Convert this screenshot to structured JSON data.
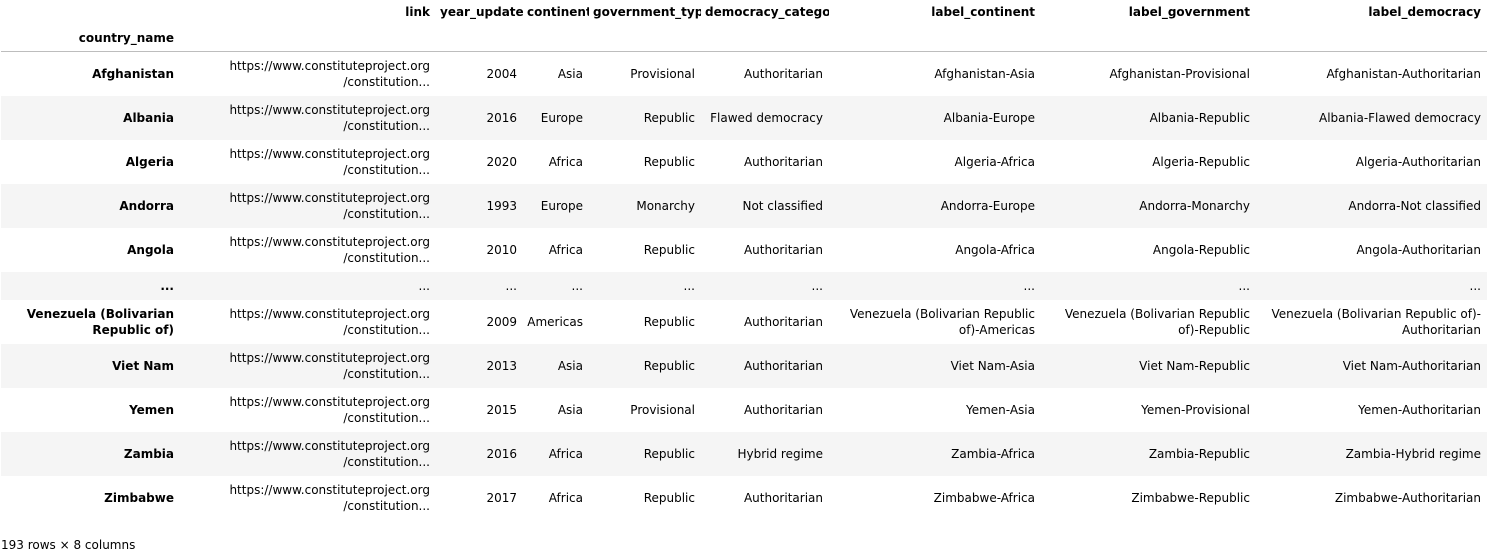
{
  "table": {
    "index_name": "country_name",
    "columns": [
      "link",
      "year_updated",
      "continent",
      "government_type",
      "democracy_category",
      "label_continent",
      "label_government",
      "label_democracy"
    ],
    "rows": [
      {
        "country_name": "Afghanistan",
        "link": "https://www.constituteproject.org /constitution...",
        "year_updated": "2004",
        "continent": "Asia",
        "government_type": "Provisional",
        "democracy_category": "Authoritarian",
        "label_continent": "Afghanistan-Asia",
        "label_government": "Afghanistan-Provisional",
        "label_democracy": "Afghanistan-Authoritarian"
      },
      {
        "country_name": "Albania",
        "link": "https://www.constituteproject.org /constitution...",
        "year_updated": "2016",
        "continent": "Europe",
        "government_type": "Republic",
        "democracy_category": "Flawed democracy",
        "label_continent": "Albania-Europe",
        "label_government": "Albania-Republic",
        "label_democracy": "Albania-Flawed democracy"
      },
      {
        "country_name": "Algeria",
        "link": "https://www.constituteproject.org /constitution...",
        "year_updated": "2020",
        "continent": "Africa",
        "government_type": "Republic",
        "democracy_category": "Authoritarian",
        "label_continent": "Algeria-Africa",
        "label_government": "Algeria-Republic",
        "label_democracy": "Algeria-Authoritarian"
      },
      {
        "country_name": "Andorra",
        "link": "https://www.constituteproject.org /constitution...",
        "year_updated": "1993",
        "continent": "Europe",
        "government_type": "Monarchy",
        "democracy_category": "Not classified",
        "label_continent": "Andorra-Europe",
        "label_government": "Andorra-Monarchy",
        "label_democracy": "Andorra-Not classified"
      },
      {
        "country_name": "Angola",
        "link": "https://www.constituteproject.org /constitution...",
        "year_updated": "2010",
        "continent": "Africa",
        "government_type": "Republic",
        "democracy_category": "Authoritarian",
        "label_continent": "Angola-Africa",
        "label_government": "Angola-Republic",
        "label_democracy": "Angola-Authoritarian"
      },
      {
        "country_name": "...",
        "link": "...",
        "year_updated": "...",
        "continent": "...",
        "government_type": "...",
        "democracy_category": "...",
        "label_continent": "...",
        "label_government": "...",
        "label_democracy": "..."
      },
      {
        "country_name": "Venezuela (Bolivarian Republic of)",
        "link": "https://www.constituteproject.org /constitution...",
        "year_updated": "2009",
        "continent": "Americas",
        "government_type": "Republic",
        "democracy_category": "Authoritarian",
        "label_continent": "Venezuela (Bolivarian Republic of)-Americas",
        "label_government": "Venezuela (Bolivarian Republic of)-Republic",
        "label_democracy": "Venezuela (Bolivarian Republic of)-Authoritarian"
      },
      {
        "country_name": "Viet Nam",
        "link": "https://www.constituteproject.org /constitution...",
        "year_updated": "2013",
        "continent": "Asia",
        "government_type": "Republic",
        "democracy_category": "Authoritarian",
        "label_continent": "Viet Nam-Asia",
        "label_government": "Viet Nam-Republic",
        "label_democracy": "Viet Nam-Authoritarian"
      },
      {
        "country_name": "Yemen",
        "link": "https://www.constituteproject.org /constitution...",
        "year_updated": "2015",
        "continent": "Asia",
        "government_type": "Provisional",
        "democracy_category": "Authoritarian",
        "label_continent": "Yemen-Asia",
        "label_government": "Yemen-Provisional",
        "label_democracy": "Yemen-Authoritarian"
      },
      {
        "country_name": "Zambia",
        "link": "https://www.constituteproject.org /constitution...",
        "year_updated": "2016",
        "continent": "Africa",
        "government_type": "Republic",
        "democracy_category": "Hybrid regime",
        "label_continent": "Zambia-Africa",
        "label_government": "Zambia-Republic",
        "label_democracy": "Zambia-Hybrid regime"
      },
      {
        "country_name": "Zimbabwe",
        "link": "https://www.constituteproject.org /constitution...",
        "year_updated": "2017",
        "continent": "Africa",
        "government_type": "Republic",
        "democracy_category": "Authoritarian",
        "label_continent": "Zimbabwe-Africa",
        "label_government": "Zimbabwe-Republic",
        "label_democracy": "Zimbabwe-Authoritarian"
      }
    ]
  },
  "footer": {
    "shape_text": "193 rows × 8 columns"
  }
}
